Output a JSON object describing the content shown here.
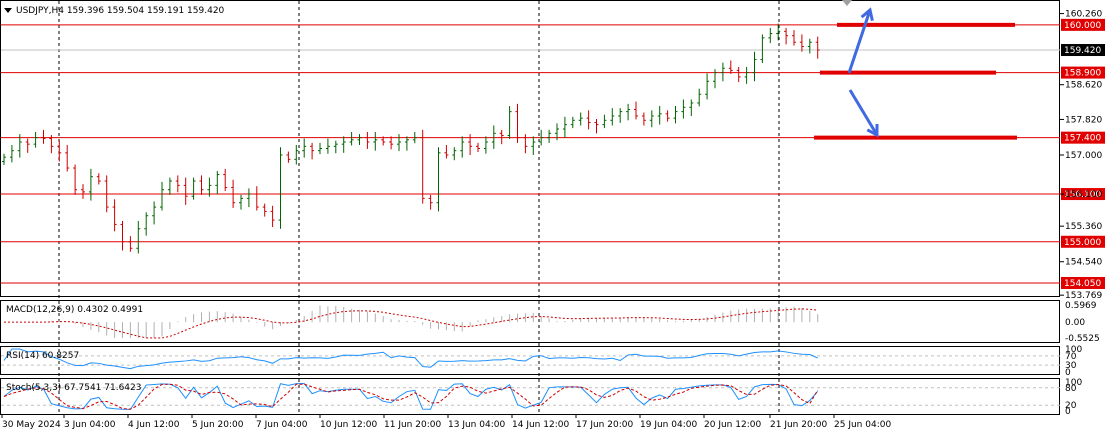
{
  "symbol_header": "USDJPY,H4  159.396 159.504 159.191 159.420",
  "colors": {
    "bull": "#006400",
    "bear": "#cc0000",
    "level": "#e00000",
    "arrow": "#4169e1",
    "macd_hist": "#b0b0b0",
    "macd_signal": "#cc0000",
    "rsi": "#1e90ff",
    "stoch_main": "#1e90ff",
    "stoch_signal": "#cc0000"
  },
  "chart_data": [
    {
      "type": "candlestick",
      "title": "USDJPY,H4  159.396 159.504 159.191 159.420",
      "ylim": [
        153.75,
        160.55
      ],
      "price_ticks": [
        "160.260",
        "158.620",
        "157.820",
        "157.000",
        "156.100",
        "155.360",
        "154.540",
        "153.769"
      ],
      "levels": [
        "160.000",
        "158.900",
        "157.400",
        "156.100",
        "155.000",
        "154.050"
      ],
      "current_price": "159.420",
      "x_tick_labels": [
        "30 May 2024",
        "3 Jun 04:00",
        "4 Jun 12:00",
        "5 Jun 20:00",
        "7 Jun 04:00",
        "10 Jun 12:00",
        "11 Jun 20:00",
        "13 Jun 04:00",
        "14 Jun 12:00",
        "17 Jun 20:00",
        "19 Jun 04:00",
        "20 Jun 12:00",
        "21 Jun 20:00",
        "25 Jun 04:00"
      ],
      "closes": [
        156.95,
        157.1,
        157.3,
        157.25,
        157.4,
        157.38,
        157.2,
        157.05,
        156.7,
        156.2,
        156.15,
        156.5,
        156.4,
        155.8,
        155.4,
        155.0,
        154.85,
        155.3,
        155.6,
        155.8,
        156.2,
        156.4,
        156.3,
        156.05,
        156.4,
        156.2,
        156.3,
        156.55,
        156.25,
        155.9,
        156.0,
        156.1,
        155.8,
        155.7,
        155.5,
        157.0,
        156.9,
        157.1,
        157.2,
        157.1,
        157.15,
        157.2,
        157.25,
        157.3,
        157.35,
        157.4,
        157.3,
        157.35,
        157.3,
        157.25,
        157.3,
        157.35,
        157.4,
        156.0,
        155.9,
        157.05,
        157.0,
        157.1,
        157.3,
        157.2,
        157.15,
        157.3,
        157.5,
        157.45,
        158.0,
        157.4,
        157.2,
        157.3,
        157.4,
        157.5,
        157.6,
        157.7,
        157.8,
        157.85,
        157.75,
        157.7,
        157.8,
        157.9,
        158.0,
        158.05,
        157.9,
        157.8,
        157.9,
        157.95,
        157.85,
        158.0,
        158.1,
        158.2,
        158.4,
        158.7,
        158.9,
        159.0,
        158.95,
        158.8,
        158.9,
        159.2,
        159.7,
        159.8,
        159.85,
        159.75,
        159.6,
        159.5,
        159.6,
        159.42
      ],
      "indicators": {
        "macd_label": "MACD(12,26,9) 0.4302 0.4991",
        "macd_ticks": [
          "0.5969",
          "0.00",
          "-0.5525"
        ],
        "rsi_label": "RSI(14) 60.8257",
        "rsi_ticks": [
          "100",
          "70",
          "30",
          "0"
        ],
        "rsi_value": 60.8257,
        "stoch_label": "Stoch(5,3,3) 67.7541 71.6423",
        "stoch_ticks": [
          "100",
          "80",
          "20",
          "0"
        ],
        "stoch_main": 67.7541,
        "stoch_signal": 71.6423
      }
    }
  ]
}
